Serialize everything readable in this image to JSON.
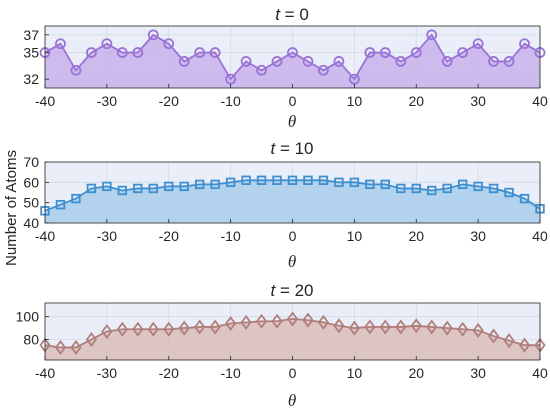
{
  "figure": {
    "ylabel": "Number of Atoms",
    "xlabel": "θ"
  },
  "chart_data": [
    {
      "type": "area",
      "title_var": "t",
      "title_value": "= 0",
      "xlabel": "θ",
      "xlim": [
        -40,
        40
      ],
      "ylim": [
        31,
        38
      ],
      "xticks": [
        -40,
        -30,
        -20,
        -10,
        0,
        10,
        20,
        30,
        40
      ],
      "yticks": [
        32,
        35,
        37
      ],
      "marker": "circle",
      "line_color": "#9B72D6",
      "fill_color": "#C8B2EC",
      "x": [
        -40,
        -37.5,
        -35,
        -32.5,
        -30,
        -27.5,
        -25,
        -22.5,
        -20,
        -17.5,
        -15,
        -12.5,
        -10,
        -7.5,
        -5,
        -2.5,
        0,
        2.5,
        5,
        7.5,
        10,
        12.5,
        15,
        17.5,
        20,
        22.5,
        25,
        27.5,
        30,
        32.5,
        35,
        37.5,
        40
      ],
      "y": [
        35,
        36,
        33,
        35,
        36,
        35,
        35,
        37,
        36,
        34,
        35,
        35,
        32,
        34,
        33,
        34,
        35,
        34,
        33,
        34,
        32,
        35,
        35,
        34,
        35,
        37,
        34,
        35,
        36,
        34,
        34,
        36,
        35
      ]
    },
    {
      "type": "area",
      "title_var": "t",
      "title_value": "= 10",
      "xlabel": "θ",
      "xlim": [
        -40,
        40
      ],
      "ylim": [
        40,
        70
      ],
      "xticks": [
        -40,
        -30,
        -20,
        -10,
        0,
        10,
        20,
        30,
        40
      ],
      "yticks": [
        40,
        50,
        60,
        70
      ],
      "marker": "square",
      "line_color": "#3E8FCF",
      "fill_color": "#A9CDEB",
      "x": [
        -40,
        -37.5,
        -35,
        -32.5,
        -30,
        -27.5,
        -25,
        -22.5,
        -20,
        -17.5,
        -15,
        -12.5,
        -10,
        -7.5,
        -5,
        -2.5,
        0,
        2.5,
        5,
        7.5,
        10,
        12.5,
        15,
        17.5,
        20,
        22.5,
        25,
        27.5,
        30,
        32.5,
        35,
        37.5,
        40
      ],
      "y": [
        46,
        49,
        52,
        57,
        58,
        56,
        57,
        57,
        58,
        58,
        59,
        59,
        60,
        61,
        61,
        61,
        61,
        61,
        61,
        60,
        60,
        59,
        59,
        57,
        57,
        56,
        57,
        59,
        58,
        57,
        55,
        52,
        47
      ]
    },
    {
      "type": "area",
      "title_var": "t",
      "title_value": "= 20",
      "xlabel": "θ",
      "xlim": [
        -40,
        40
      ],
      "ylim": [
        62,
        112
      ],
      "xticks": [
        -40,
        -30,
        -20,
        -10,
        0,
        10,
        20,
        30,
        40
      ],
      "yticks": [
        80,
        100
      ],
      "marker": "diamond",
      "line_color": "#B07F7B",
      "fill_color": "#D9BDBA",
      "x": [
        -40,
        -37.5,
        -35,
        -32.5,
        -30,
        -27.5,
        -25,
        -22.5,
        -20,
        -17.5,
        -15,
        -12.5,
        -10,
        -7.5,
        -5,
        -2.5,
        0,
        2.5,
        5,
        7.5,
        10,
        12.5,
        15,
        17.5,
        20,
        22.5,
        25,
        27.5,
        30,
        32.5,
        35,
        37.5,
        40
      ],
      "y": [
        75,
        73,
        73,
        80,
        87,
        89,
        89,
        89,
        89,
        90,
        91,
        91,
        94,
        95,
        96,
        96,
        98,
        97,
        95,
        92,
        90,
        91,
        91,
        91,
        92,
        91,
        90,
        89,
        88,
        83,
        79,
        75,
        75
      ]
    }
  ]
}
